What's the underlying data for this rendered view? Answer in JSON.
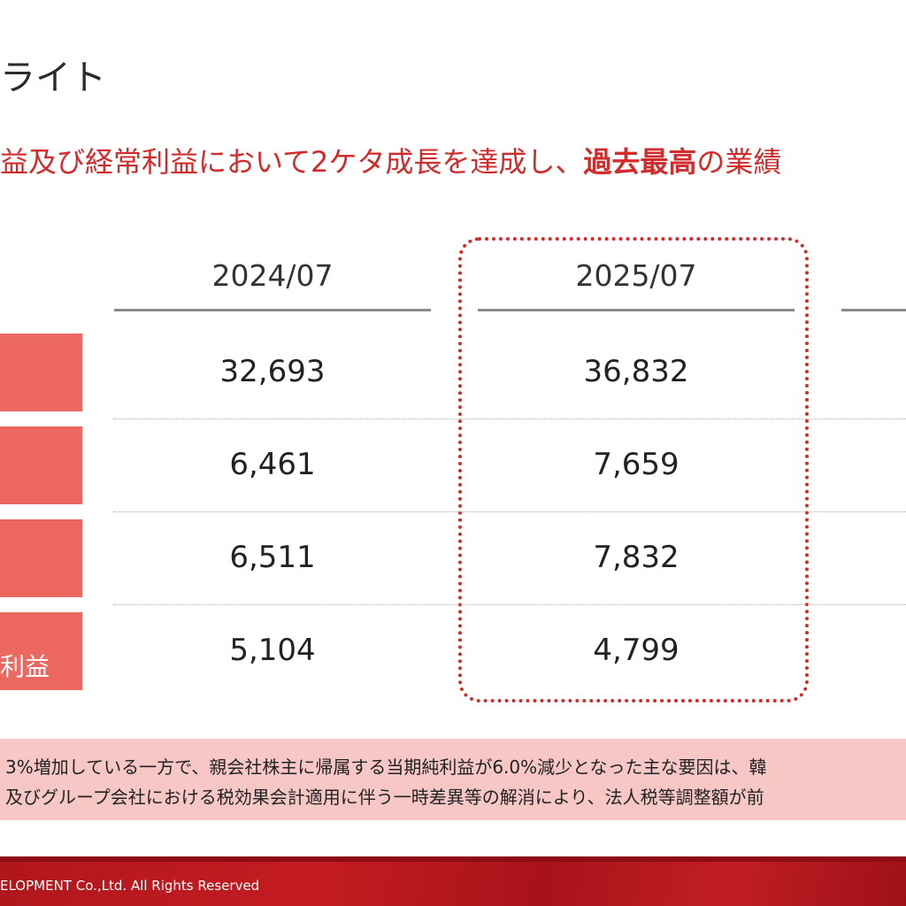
{
  "page": {
    "title": "ライト",
    "headline_prefix": "益及び経常利益において2ケタ成長を達成し、",
    "headline_emphasis": "過去最高",
    "headline_suffix": "の業績"
  },
  "table": {
    "columns": [
      "2024/07",
      "2025/07"
    ],
    "rows": [
      {
        "label": "",
        "values": [
          "32,693",
          "36,832"
        ]
      },
      {
        "label": "",
        "values": [
          "6,461",
          "7,659"
        ]
      },
      {
        "label": "",
        "values": [
          "6,511",
          "7,832"
        ]
      },
      {
        "label": "利益",
        "values": [
          "5,104",
          "4,799"
        ]
      }
    ]
  },
  "note": {
    "line1": "3%増加している一方で、親会社株主に帰属する当期純利益が6.0%減少となった主な要因は、韓",
    "line2": "及びグループ会社における税効果会計適用に伴う一時差異等の解消により、法人税等調整額が前"
  },
  "footer": {
    "copyright": "ELOPMENT Co.,Ltd.  All Rights Reserved"
  },
  "colors": {
    "accent": "#d22b2b",
    "label_bg": "#ec675f",
    "note_bg": "#f7c7c6"
  }
}
